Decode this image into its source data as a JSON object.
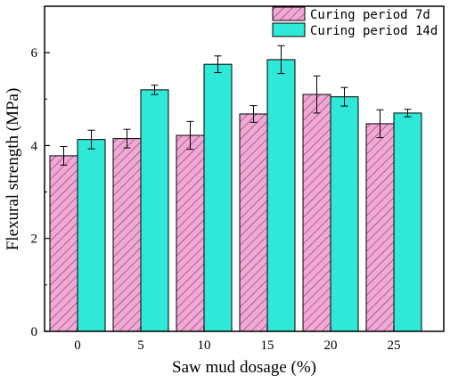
{
  "chart_data": {
    "type": "bar",
    "xlabel": "Saw mud dosage (%)",
    "ylabel": "Flexural strength (MPa)",
    "categories": [
      "0",
      "5",
      "10",
      "15",
      "20",
      "25"
    ],
    "ylim": [
      0,
      7
    ],
    "yticks": [
      0,
      2,
      4,
      6
    ],
    "legend_position": "top-right",
    "series": [
      {
        "name": "Curing period 7d",
        "values": [
          3.78,
          4.15,
          4.22,
          4.68,
          5.1,
          4.47
        ],
        "errors": [
          0.2,
          0.2,
          0.3,
          0.18,
          0.4,
          0.3
        ],
        "color": "#f4a6d7",
        "hatch": true
      },
      {
        "name": "Curing period 14d",
        "values": [
          4.13,
          5.2,
          5.75,
          5.85,
          5.05,
          4.7
        ],
        "errors": [
          0.2,
          0.1,
          0.18,
          0.3,
          0.2,
          0.08
        ],
        "color": "#2ee8d8",
        "hatch": false
      }
    ]
  }
}
